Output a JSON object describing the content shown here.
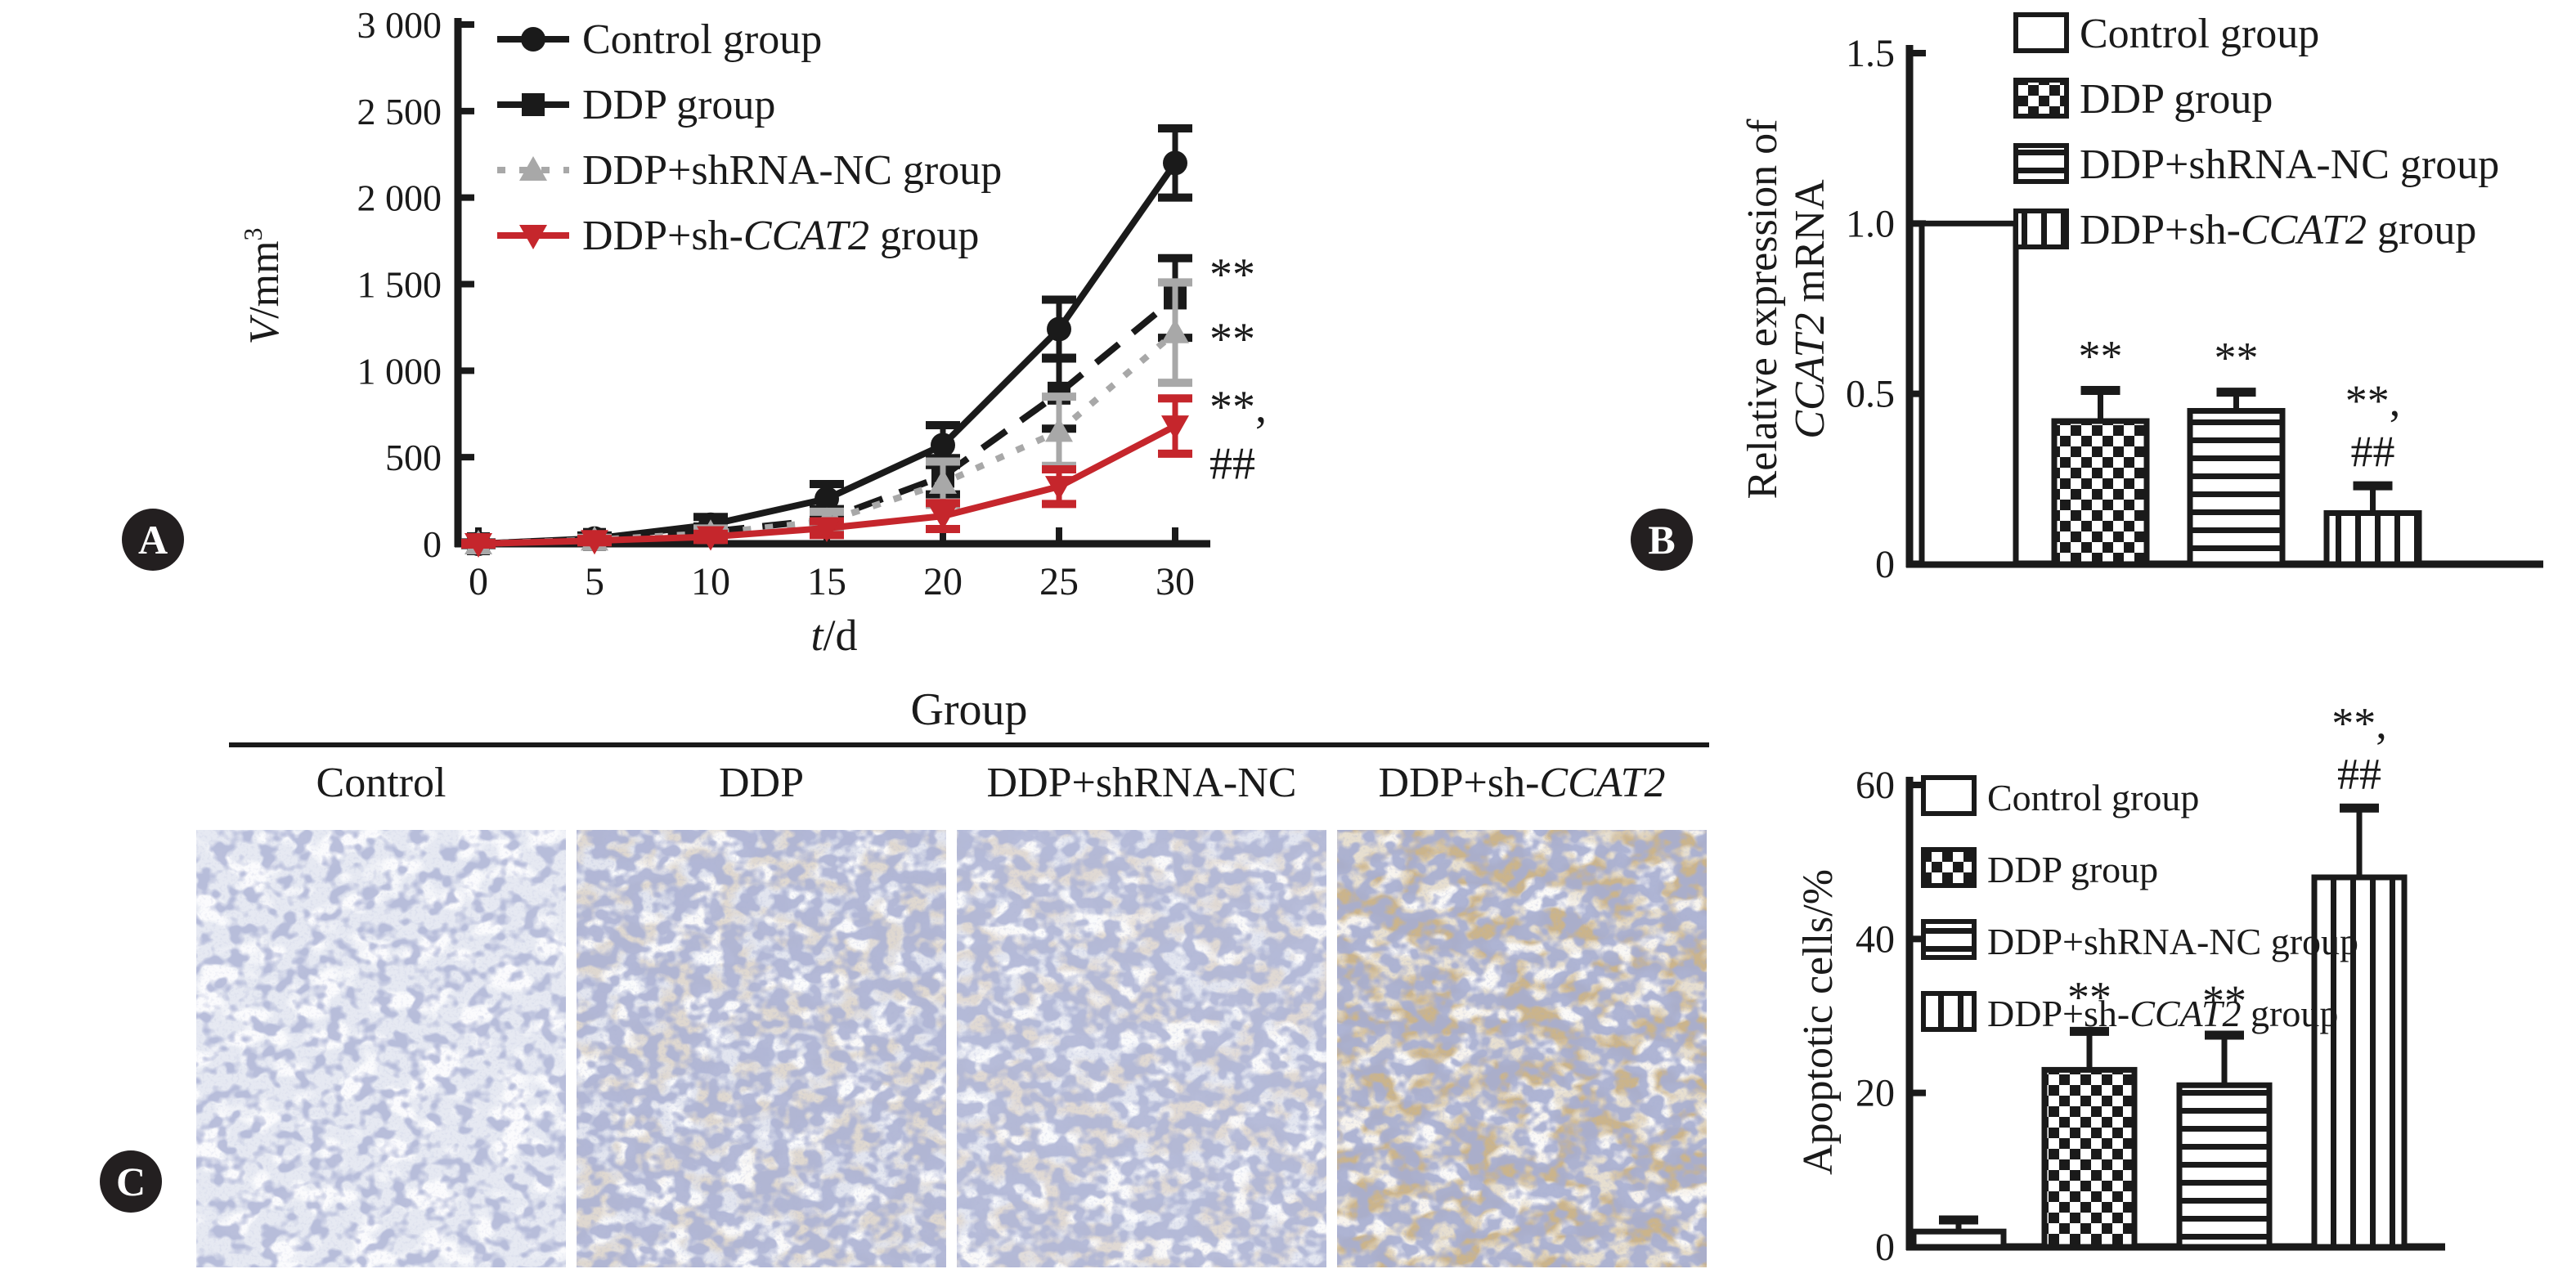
{
  "figure": {
    "background": "#ffffff",
    "panel_labels": {
      "a": "A",
      "b": "B",
      "c": "C"
    }
  },
  "colors": {
    "black": "#1a1a1a",
    "gray": "#a8a8a8",
    "red": "#c5262c",
    "badge": "#231f20"
  },
  "groups": [
    "Control group",
    "DDP group",
    "DDP+shRNA-NC group",
    "DDP+sh-CCAT2 group"
  ],
  "chart_data": [
    {
      "id": "tumor-volume-line",
      "type": "line",
      "title": "",
      "xlabel_parts": [
        {
          "text": "t",
          "italic": true
        },
        {
          "text": "/d"
        }
      ],
      "ylabel_parts": [
        {
          "text": "V",
          "italic": true
        },
        {
          "text": "/mm"
        },
        {
          "text": "3",
          "sup": true
        }
      ],
      "x": [
        0,
        5,
        10,
        15,
        20,
        25,
        30
      ],
      "xtick_labels": [
        "0",
        "5",
        "10",
        "15",
        "20",
        "25",
        "30"
      ],
      "xlim": [
        0,
        32
      ],
      "ylim": [
        0,
        3000
      ],
      "yticks": [
        0,
        500,
        1000,
        1500,
        2000,
        2500,
        3000
      ],
      "ytick_labels": [
        "0",
        "500",
        "1 000",
        "1 500",
        "2 000",
        "2 500",
        "3 000"
      ],
      "grid": false,
      "legend_position": "top-left-inside",
      "series": [
        {
          "name": "Control group",
          "name_parts": [
            {
              "text": "Control group"
            }
          ],
          "color": "#1a1a1a",
          "dash": "solid",
          "marker": "circle",
          "values": [
            0,
            30,
            110,
            260,
            570,
            1240,
            2200
          ],
          "errors": [
            8,
            18,
            45,
            85,
            115,
            170,
            200
          ]
        },
        {
          "name": "DDP group",
          "name_parts": [
            {
              "text": "DDP group"
            }
          ],
          "color": "#1a1a1a",
          "dash": "dashed",
          "marker": "square",
          "values": [
            0,
            25,
            70,
            140,
            390,
            870,
            1420
          ],
          "errors": [
            6,
            14,
            30,
            60,
            105,
            205,
            230
          ]
        },
        {
          "name": "DDP+shRNA-NC group",
          "name_parts": [
            {
              "text": "DDP+shRNA-NC group"
            }
          ],
          "color": "#a8a8a8",
          "dash": "dotted",
          "marker": "triangle-up",
          "values": [
            0,
            22,
            60,
            130,
            350,
            650,
            1220
          ],
          "errors": [
            6,
            12,
            28,
            55,
            125,
            200,
            290
          ]
        },
        {
          "name": "DDP+sh-CCAT2 group",
          "name_parts": [
            {
              "text": "DDP+sh-"
            },
            {
              "text": "CCAT2",
              "italic": true
            },
            {
              "text": " group"
            }
          ],
          "color": "#c5262c",
          "dash": "solid",
          "marker": "triangle-down",
          "values": [
            0,
            18,
            40,
            90,
            160,
            330,
            680
          ],
          "errors": [
            5,
            10,
            18,
            40,
            75,
            100,
            160
          ]
        }
      ],
      "annotations": [
        {
          "text": "**",
          "x": 30,
          "y": 1555
        },
        {
          "text": "**",
          "x": 30,
          "y": 1180
        },
        {
          "text": "**,",
          "x": 30,
          "y": 790
        },
        {
          "text": "##",
          "x": 30,
          "y": 460
        }
      ]
    },
    {
      "id": "ccat2-expression-bar",
      "type": "bar",
      "title": "",
      "ylabel_lines": [
        [
          {
            "text": "Relative expression of"
          }
        ],
        [
          {
            "text": "CCAT2",
            "italic": true
          },
          {
            "text": " mRNA"
          }
        ]
      ],
      "categories": [
        "Control group",
        "DDP group",
        "DDP+shRNA-NC group",
        "DDP+sh-CCAT2 group"
      ],
      "values": [
        1.0,
        0.42,
        0.45,
        0.15
      ],
      "errors": [
        0,
        0.09,
        0.055,
        0.08
      ],
      "ylim": [
        0,
        1.5
      ],
      "yticks": [
        0,
        0.5,
        1.0,
        1.5
      ],
      "ytick_labels": [
        "0",
        "0.5",
        "1.0",
        "1.5"
      ],
      "patterns": [
        "plain",
        "checker",
        "hlines",
        "vlines"
      ],
      "bar_annotations": [
        [],
        [
          "**"
        ],
        [
          "**"
        ],
        [
          "**,",
          "##"
        ]
      ],
      "legend_position": "top-right-inside",
      "legend": [
        {
          "pattern": "plain",
          "label_parts": [
            {
              "text": "Control group"
            }
          ]
        },
        {
          "pattern": "checker",
          "label_parts": [
            {
              "text": "DDP group"
            }
          ]
        },
        {
          "pattern": "hlines",
          "label_parts": [
            {
              "text": "DDP+shRNA-NC group"
            }
          ]
        },
        {
          "pattern": "vlines",
          "label_parts": [
            {
              "text": "DDP+sh-"
            },
            {
              "text": "CCAT2",
              "italic": true
            },
            {
              "text": " group"
            }
          ]
        }
      ]
    },
    {
      "id": "apoptotic-cells-bar",
      "type": "bar",
      "title": "",
      "ylabel_lines": [
        [
          {
            "text": "Apoptotic cells/%"
          }
        ]
      ],
      "categories": [
        "Control group",
        "DDP group",
        "DDP+shRNA-NC group",
        "DDP+sh-CCAT2 group"
      ],
      "values": [
        2,
        23,
        21,
        48
      ],
      "errors": [
        1.5,
        5,
        6.5,
        9
      ],
      "ylim": [
        0,
        60
      ],
      "yticks": [
        0,
        20,
        40,
        60
      ],
      "ytick_labels": [
        "0",
        "20",
        "40",
        "60"
      ],
      "patterns": [
        "plain",
        "checker",
        "hlines",
        "vlines"
      ],
      "bar_annotations": [
        [],
        [
          "**"
        ],
        [
          "**"
        ],
        [
          "**,",
          "##"
        ]
      ],
      "legend_position": "top-left-inside",
      "legend": [
        {
          "pattern": "plain",
          "label_parts": [
            {
              "text": "Control group"
            }
          ]
        },
        {
          "pattern": "checker",
          "label_parts": [
            {
              "text": "DDP group"
            }
          ]
        },
        {
          "pattern": "hlines",
          "label_parts": [
            {
              "text": "DDP+shRNA-NC group"
            }
          ]
        },
        {
          "pattern": "vlines",
          "label_parts": [
            {
              "text": "DDP+sh-"
            },
            {
              "text": "CCAT2",
              "italic": true
            },
            {
              "text": " group"
            }
          ]
        }
      ]
    }
  ],
  "panel_c": {
    "title": "Group",
    "columns": [
      {
        "label_parts": [
          {
            "text": "Control"
          }
        ]
      },
      {
        "label_parts": [
          {
            "text": "DDP"
          }
        ]
      },
      {
        "label_parts": [
          {
            "text": "DDP+shRNA-NC"
          }
        ]
      },
      {
        "label_parts": [
          {
            "text": "DDP+sh-"
          },
          {
            "text": "CCAT2",
            "italic": true
          }
        ]
      }
    ],
    "images": [
      {
        "name": "ihc-control",
        "base": "#e6e9f2",
        "nuclei": "#737cb0",
        "brown": "none",
        "density": "low"
      },
      {
        "name": "ihc-ddp",
        "base": "#e2e5ef",
        "nuclei": "#6a73a8",
        "brown": "#b89d79",
        "density": "high"
      },
      {
        "name": "ihc-ddp-shrna-nc",
        "base": "#e3e6f0",
        "nuclei": "#6e77ab",
        "brown": "#bda182",
        "density": "high"
      },
      {
        "name": "ihc-ddp-sh-ccat2",
        "base": "#e7dfd0",
        "nuclei": "#636ca3",
        "brown": "#96713f",
        "density": "strong"
      }
    ]
  }
}
